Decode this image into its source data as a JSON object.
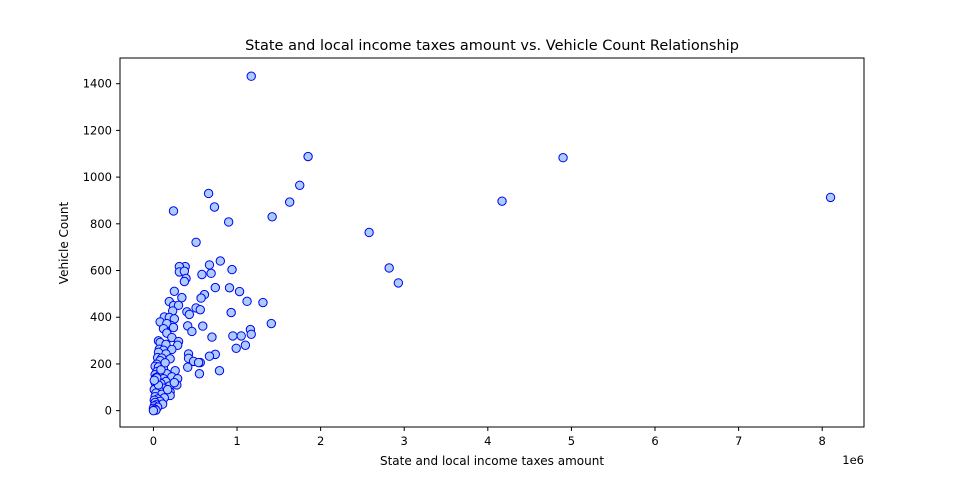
{
  "chart_data": {
    "type": "scatter",
    "title": "State and local income taxes amount vs. Vehicle Count Relationship",
    "xlabel": "State and local income taxes amount",
    "ylabel": "Vehicle Count",
    "x_offset_label": "1e6",
    "xlim": [
      -0.4,
      8.5
    ],
    "ylim": [
      -70,
      1510
    ],
    "x_ticks": [
      0,
      1,
      2,
      3,
      4,
      5,
      6,
      7,
      8
    ],
    "y_ticks": [
      0,
      200,
      400,
      600,
      800,
      1000,
      1200,
      1400
    ],
    "grid": false,
    "colors": {
      "marker_face": "#aaccff",
      "marker_edge": "#0000ee"
    },
    "points": [
      {
        "x": 1.17,
        "y": 1432
      },
      {
        "x": 1.85,
        "y": 1088
      },
      {
        "x": 4.9,
        "y": 1083
      },
      {
        "x": 8.1,
        "y": 913
      },
      {
        "x": 0.66,
        "y": 930
      },
      {
        "x": 1.75,
        "y": 965
      },
      {
        "x": 4.17,
        "y": 897
      },
      {
        "x": 1.63,
        "y": 893
      },
      {
        "x": 0.73,
        "y": 872
      },
      {
        "x": 0.24,
        "y": 855
      },
      {
        "x": 1.42,
        "y": 830
      },
      {
        "x": 0.9,
        "y": 808
      },
      {
        "x": 2.58,
        "y": 763
      },
      {
        "x": 0.51,
        "y": 721
      },
      {
        "x": 2.82,
        "y": 611
      },
      {
        "x": 2.93,
        "y": 547
      },
      {
        "x": 0.8,
        "y": 641
      },
      {
        "x": 0.67,
        "y": 624
      },
      {
        "x": 0.38,
        "y": 617
      },
      {
        "x": 0.31,
        "y": 617
      },
      {
        "x": 0.94,
        "y": 604
      },
      {
        "x": 0.31,
        "y": 594
      },
      {
        "x": 0.37,
        "y": 597
      },
      {
        "x": 0.58,
        "y": 583
      },
      {
        "x": 0.69,
        "y": 588
      },
      {
        "x": 0.39,
        "y": 566
      },
      {
        "x": 0.37,
        "y": 553
      },
      {
        "x": 0.74,
        "y": 527
      },
      {
        "x": 0.91,
        "y": 526
      },
      {
        "x": 1.03,
        "y": 510
      },
      {
        "x": 0.25,
        "y": 511
      },
      {
        "x": 0.61,
        "y": 497
      },
      {
        "x": 0.34,
        "y": 484
      },
      {
        "x": 0.57,
        "y": 482
      },
      {
        "x": 1.12,
        "y": 468
      },
      {
        "x": 1.31,
        "y": 463
      },
      {
        "x": 0.19,
        "y": 467
      },
      {
        "x": 0.24,
        "y": 450
      },
      {
        "x": 0.3,
        "y": 451
      },
      {
        "x": 0.51,
        "y": 440
      },
      {
        "x": 0.56,
        "y": 432
      },
      {
        "x": 0.23,
        "y": 427
      },
      {
        "x": 0.4,
        "y": 423
      },
      {
        "x": 0.43,
        "y": 412
      },
      {
        "x": 0.93,
        "y": 420
      },
      {
        "x": 0.13,
        "y": 401
      },
      {
        "x": 0.19,
        "y": 399
      },
      {
        "x": 0.25,
        "y": 393
      },
      {
        "x": 0.08,
        "y": 380
      },
      {
        "x": 0.21,
        "y": 365
      },
      {
        "x": 0.16,
        "y": 373
      },
      {
        "x": 1.41,
        "y": 373
      },
      {
        "x": 0.41,
        "y": 363
      },
      {
        "x": 0.59,
        "y": 362
      },
      {
        "x": 0.12,
        "y": 351
      },
      {
        "x": 0.24,
        "y": 356
      },
      {
        "x": 1.16,
        "y": 347
      },
      {
        "x": 0.46,
        "y": 339
      },
      {
        "x": 0.16,
        "y": 332
      },
      {
        "x": 0.95,
        "y": 320
      },
      {
        "x": 1.05,
        "y": 320
      },
      {
        "x": 1.17,
        "y": 327
      },
      {
        "x": 0.7,
        "y": 315
      },
      {
        "x": 0.22,
        "y": 313
      },
      {
        "x": 0.06,
        "y": 299
      },
      {
        "x": 0.3,
        "y": 296
      },
      {
        "x": 0.08,
        "y": 292
      },
      {
        "x": 0.15,
        "y": 284
      },
      {
        "x": 0.29,
        "y": 280
      },
      {
        "x": 1.1,
        "y": 280
      },
      {
        "x": 0.99,
        "y": 267
      },
      {
        "x": 0.07,
        "y": 263
      },
      {
        "x": 0.12,
        "y": 259
      },
      {
        "x": 0.22,
        "y": 262
      },
      {
        "x": 0.06,
        "y": 250
      },
      {
        "x": 0.15,
        "y": 243
      },
      {
        "x": 0.42,
        "y": 243
      },
      {
        "x": 0.74,
        "y": 241
      },
      {
        "x": 0.67,
        "y": 233
      },
      {
        "x": 0.05,
        "y": 227
      },
      {
        "x": 0.1,
        "y": 225
      },
      {
        "x": 0.2,
        "y": 222
      },
      {
        "x": 0.42,
        "y": 224
      },
      {
        "x": 0.08,
        "y": 214
      },
      {
        "x": 0.48,
        "y": 211
      },
      {
        "x": 0.56,
        "y": 206
      },
      {
        "x": 0.54,
        "y": 206
      },
      {
        "x": 0.04,
        "y": 199
      },
      {
        "x": 0.02,
        "y": 190
      },
      {
        "x": 0.06,
        "y": 187
      },
      {
        "x": 0.41,
        "y": 186
      },
      {
        "x": 0.12,
        "y": 181
      },
      {
        "x": 0.79,
        "y": 171
      },
      {
        "x": 0.26,
        "y": 171
      },
      {
        "x": 0.04,
        "y": 167
      },
      {
        "x": 0.11,
        "y": 162
      },
      {
        "x": 0.16,
        "y": 158
      },
      {
        "x": 0.55,
        "y": 158
      },
      {
        "x": 0.02,
        "y": 154
      },
      {
        "x": 0.07,
        "y": 150
      },
      {
        "x": 0.22,
        "y": 145
      },
      {
        "x": 0.03,
        "y": 141
      },
      {
        "x": 0.12,
        "y": 137
      },
      {
        "x": 0.29,
        "y": 137
      },
      {
        "x": 0.05,
        "y": 128
      },
      {
        "x": 0.15,
        "y": 125
      },
      {
        "x": 0.02,
        "y": 120
      },
      {
        "x": 0.09,
        "y": 116
      },
      {
        "x": 0.28,
        "y": 110
      },
      {
        "x": 0.19,
        "y": 105
      },
      {
        "x": 0.04,
        "y": 100
      },
      {
        "x": 0.12,
        "y": 96
      },
      {
        "x": 0.01,
        "y": 90
      },
      {
        "x": 0.07,
        "y": 85
      },
      {
        "x": 0.2,
        "y": 80
      },
      {
        "x": 0.03,
        "y": 75
      },
      {
        "x": 0.1,
        "y": 70
      },
      {
        "x": 0.2,
        "y": 65
      },
      {
        "x": 0.02,
        "y": 60
      },
      {
        "x": 0.13,
        "y": 55
      },
      {
        "x": 0.05,
        "y": 50
      },
      {
        "x": 0.01,
        "y": 45
      },
      {
        "x": 0.08,
        "y": 40
      },
      {
        "x": 0.02,
        "y": 35
      },
      {
        "x": 0.11,
        "y": 28
      },
      {
        "x": 0.03,
        "y": 25
      },
      {
        "x": 0.01,
        "y": 20
      },
      {
        "x": 0.05,
        "y": 15
      },
      {
        "x": 0.0,
        "y": 10
      },
      {
        "x": 0.02,
        "y": 6
      },
      {
        "x": 0.03,
        "y": 2
      },
      {
        "x": 0.0,
        "y": 0
      },
      {
        "x": 0.06,
        "y": 110
      },
      {
        "x": 0.09,
        "y": 175
      },
      {
        "x": 0.14,
        "y": 205
      },
      {
        "x": 0.04,
        "y": 140
      },
      {
        "x": 0.01,
        "y": 130
      },
      {
        "x": 0.17,
        "y": 90
      },
      {
        "x": 0.25,
        "y": 120
      }
    ]
  }
}
